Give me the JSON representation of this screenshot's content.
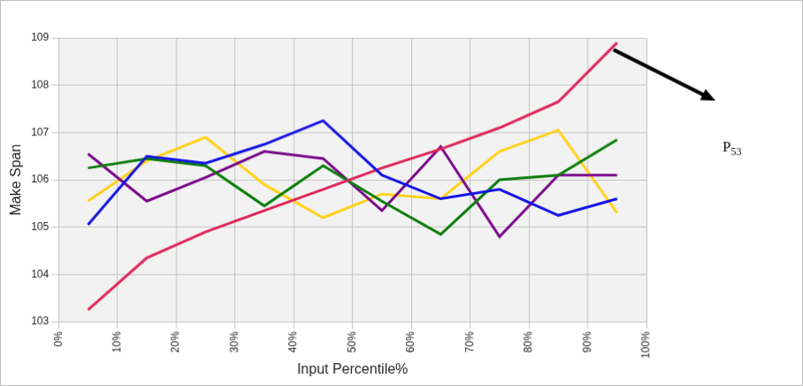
{
  "chart_data": {
    "type": "line",
    "x_label": "Input Percentile%",
    "y_label": "Make Span",
    "x": [
      5,
      15,
      25,
      35,
      45,
      55,
      65,
      75,
      85,
      95
    ],
    "series": [
      {
        "color": "#1414e6",
        "values": [
          105.05,
          106.5,
          106.35,
          106.75,
          107.25,
          106.1,
          105.6,
          105.8,
          105.25,
          105.6
        ]
      },
      {
        "color": "#e0245a",
        "values": [
          103.25,
          104.35,
          104.9,
          105.35,
          105.8,
          106.25,
          106.65,
          107.1,
          107.65,
          108.9
        ]
      },
      {
        "color": "#0b7d0b",
        "values": [
          106.25,
          106.45,
          106.3,
          105.45,
          106.3,
          105.55,
          104.85,
          106.0,
          106.1,
          106.85
        ]
      },
      {
        "color": "#7a0a8a",
        "values": [
          106.55,
          105.55,
          106.05,
          106.6,
          106.45,
          105.35,
          106.7,
          104.8,
          106.1,
          106.1
        ]
      },
      {
        "color": "#ffd21a",
        "values": [
          105.55,
          106.4,
          106.9,
          105.9,
          105.2,
          105.7,
          105.6,
          106.6,
          107.05,
          105.3
        ]
      }
    ],
    "xlim": [
      0,
      100
    ],
    "xticks": [
      {
        "value": 0,
        "label": "0%"
      },
      {
        "value": 10,
        "label": "10%"
      },
      {
        "value": 20,
        "label": "20%"
      },
      {
        "value": 30,
        "label": "30%"
      },
      {
        "value": 40,
        "label": "40%"
      },
      {
        "value": 50,
        "label": "50%"
      },
      {
        "value": 60,
        "label": "60%"
      },
      {
        "value": 70,
        "label": "70%"
      },
      {
        "value": 80,
        "label": "80%"
      },
      {
        "value": 90,
        "label": "90%"
      },
      {
        "value": 100,
        "label": "100%"
      }
    ],
    "ylim": [
      103,
      109
    ],
    "yticks": [
      103,
      104,
      105,
      106,
      107,
      108,
      109
    ],
    "grid": true,
    "annotations": [
      {
        "text": "P53",
        "x": 95,
        "y": 108.9
      }
    ]
  }
}
